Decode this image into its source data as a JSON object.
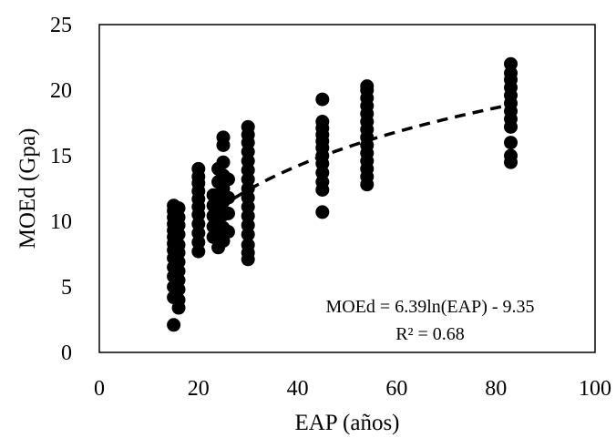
{
  "chart_data": {
    "type": "scatter",
    "xlabel": "EAP (años)",
    "ylabel": "MOEd (Gpa)",
    "xlim": [
      0,
      100
    ],
    "ylim": [
      0,
      25
    ],
    "x_ticks": [
      "0",
      "20",
      "40",
      "60",
      "80",
      "100"
    ],
    "y_ticks": [
      "0",
      "5",
      "10",
      "15",
      "20",
      "25"
    ],
    "grid": false,
    "points": [
      {
        "x": 15,
        "y": 2.1
      },
      {
        "x": 15,
        "y": 4.2
      },
      {
        "x": 15,
        "y": 5.0
      },
      {
        "x": 15,
        "y": 5.8
      },
      {
        "x": 15,
        "y": 6.5
      },
      {
        "x": 15,
        "y": 7.2
      },
      {
        "x": 15,
        "y": 7.8
      },
      {
        "x": 15,
        "y": 8.3
      },
      {
        "x": 15,
        "y": 8.8
      },
      {
        "x": 15,
        "y": 9.3
      },
      {
        "x": 15,
        "y": 9.8
      },
      {
        "x": 15,
        "y": 10.3
      },
      {
        "x": 15,
        "y": 10.8
      },
      {
        "x": 15,
        "y": 11.2
      },
      {
        "x": 16,
        "y": 3.4
      },
      {
        "x": 16,
        "y": 4.0
      },
      {
        "x": 16,
        "y": 4.8
      },
      {
        "x": 16,
        "y": 5.5
      },
      {
        "x": 16,
        "y": 6.2
      },
      {
        "x": 16,
        "y": 6.9
      },
      {
        "x": 16,
        "y": 7.6
      },
      {
        "x": 16,
        "y": 8.2
      },
      {
        "x": 16,
        "y": 9.0
      },
      {
        "x": 16,
        "y": 9.7
      },
      {
        "x": 16,
        "y": 10.3
      },
      {
        "x": 16,
        "y": 11.0
      },
      {
        "x": 20,
        "y": 7.7
      },
      {
        "x": 20,
        "y": 8.4
      },
      {
        "x": 20,
        "y": 9.1
      },
      {
        "x": 20,
        "y": 9.8
      },
      {
        "x": 20,
        "y": 10.5
      },
      {
        "x": 20,
        "y": 11.1
      },
      {
        "x": 20,
        "y": 11.7
      },
      {
        "x": 20,
        "y": 12.3
      },
      {
        "x": 20,
        "y": 12.9
      },
      {
        "x": 20,
        "y": 13.4
      },
      {
        "x": 20,
        "y": 14.0
      },
      {
        "x": 23,
        "y": 8.8
      },
      {
        "x": 23,
        "y": 9.6
      },
      {
        "x": 23,
        "y": 10.4
      },
      {
        "x": 23,
        "y": 11.2
      },
      {
        "x": 23,
        "y": 12.0
      },
      {
        "x": 24,
        "y": 8.0
      },
      {
        "x": 24,
        "y": 9.0
      },
      {
        "x": 24,
        "y": 10.0
      },
      {
        "x": 24,
        "y": 11.0
      },
      {
        "x": 24,
        "y": 12.0
      },
      {
        "x": 24,
        "y": 13.0
      },
      {
        "x": 24,
        "y": 14.0
      },
      {
        "x": 25,
        "y": 8.5
      },
      {
        "x": 25,
        "y": 9.5
      },
      {
        "x": 25,
        "y": 10.5
      },
      {
        "x": 25,
        "y": 11.5
      },
      {
        "x": 25,
        "y": 12.5
      },
      {
        "x": 25,
        "y": 13.5
      },
      {
        "x": 25,
        "y": 14.5
      },
      {
        "x": 25,
        "y": 15.8
      },
      {
        "x": 25,
        "y": 16.4
      },
      {
        "x": 26,
        "y": 9.2
      },
      {
        "x": 26,
        "y": 10.6
      },
      {
        "x": 26,
        "y": 11.8
      },
      {
        "x": 26,
        "y": 13.2
      },
      {
        "x": 30,
        "y": 7.1
      },
      {
        "x": 30,
        "y": 7.6
      },
      {
        "x": 30,
        "y": 8.2
      },
      {
        "x": 30,
        "y": 9.0
      },
      {
        "x": 30,
        "y": 9.7
      },
      {
        "x": 30,
        "y": 10.4
      },
      {
        "x": 30,
        "y": 11.1
      },
      {
        "x": 30,
        "y": 11.8
      },
      {
        "x": 30,
        "y": 12.5
      },
      {
        "x": 30,
        "y": 13.2
      },
      {
        "x": 30,
        "y": 13.9
      },
      {
        "x": 30,
        "y": 14.6
      },
      {
        "x": 30,
        "y": 15.3
      },
      {
        "x": 30,
        "y": 16.0
      },
      {
        "x": 30,
        "y": 16.6
      },
      {
        "x": 30,
        "y": 17.2
      },
      {
        "x": 45,
        "y": 10.7
      },
      {
        "x": 45,
        "y": 12.4
      },
      {
        "x": 45,
        "y": 13.0
      },
      {
        "x": 45,
        "y": 13.7
      },
      {
        "x": 45,
        "y": 14.4
      },
      {
        "x": 45,
        "y": 15.0
      },
      {
        "x": 45,
        "y": 15.6
      },
      {
        "x": 45,
        "y": 16.1
      },
      {
        "x": 45,
        "y": 16.6
      },
      {
        "x": 45,
        "y": 17.1
      },
      {
        "x": 45,
        "y": 17.6
      },
      {
        "x": 45,
        "y": 19.3
      },
      {
        "x": 54,
        "y": 12.8
      },
      {
        "x": 54,
        "y": 13.4
      },
      {
        "x": 54,
        "y": 14.0
      },
      {
        "x": 54,
        "y": 14.6
      },
      {
        "x": 54,
        "y": 15.2
      },
      {
        "x": 54,
        "y": 15.8
      },
      {
        "x": 54,
        "y": 16.4
      },
      {
        "x": 54,
        "y": 17.0
      },
      {
        "x": 54,
        "y": 17.6
      },
      {
        "x": 54,
        "y": 18.2
      },
      {
        "x": 54,
        "y": 18.8
      },
      {
        "x": 54,
        "y": 19.4
      },
      {
        "x": 54,
        "y": 20.0
      },
      {
        "x": 54,
        "y": 20.3
      },
      {
        "x": 83,
        "y": 14.5
      },
      {
        "x": 83,
        "y": 15.0
      },
      {
        "x": 83,
        "y": 16.0
      },
      {
        "x": 83,
        "y": 17.2
      },
      {
        "x": 83,
        "y": 17.8
      },
      {
        "x": 83,
        "y": 18.4
      },
      {
        "x": 83,
        "y": 19.0
      },
      {
        "x": 83,
        "y": 19.6
      },
      {
        "x": 83,
        "y": 20.2
      },
      {
        "x": 83,
        "y": 20.8
      },
      {
        "x": 83,
        "y": 21.3
      },
      {
        "x": 83,
        "y": 22.0
      }
    ],
    "trendline": {
      "type": "logarithmic",
      "a": 6.39,
      "b": -9.35,
      "x_range": [
        24,
        83
      ],
      "style": "dashed"
    },
    "annotation": {
      "equation": "MOEd = 6.39ln(EAP) - 9.35",
      "r_squared": "R² = 0.68"
    }
  }
}
